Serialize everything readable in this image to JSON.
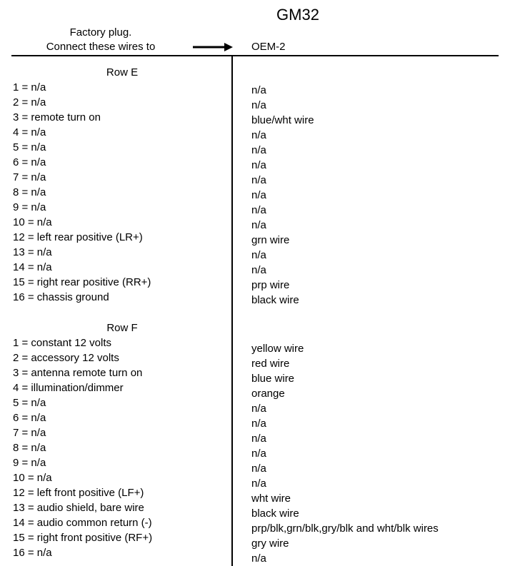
{
  "title": "GM32",
  "header": {
    "left_line1": "Factory plug.",
    "left_line2": "Connect these wires to",
    "right": "OEM-2"
  },
  "sections": [
    {
      "title": "Row E",
      "rows": [
        {
          "pin": "1",
          "desc": "n/a",
          "wire": "n/a"
        },
        {
          "pin": "2",
          "desc": "n/a",
          "wire": "n/a"
        },
        {
          "pin": "3",
          "desc": "remote turn on",
          "wire": "blue/wht wire"
        },
        {
          "pin": "4",
          "desc": "n/a",
          "wire": "n/a"
        },
        {
          "pin": "5",
          "desc": "n/a",
          "wire": "n/a"
        },
        {
          "pin": "6",
          "desc": "n/a",
          "wire": "n/a"
        },
        {
          "pin": "7",
          "desc": "n/a",
          "wire": "n/a"
        },
        {
          "pin": "8",
          "desc": "n/a",
          "wire": "n/a"
        },
        {
          "pin": "9",
          "desc": "n/a",
          "wire": "n/a"
        },
        {
          "pin": "10",
          "desc": "n/a",
          "wire": "n/a"
        },
        {
          "pin": "12",
          "desc": "left rear positive (LR+)",
          "wire": "grn wire"
        },
        {
          "pin": "13",
          "desc": "n/a",
          "wire": "n/a"
        },
        {
          "pin": "14",
          "desc": "n/a",
          "wire": "n/a"
        },
        {
          "pin": "15",
          "desc": "right rear positive (RR+)",
          "wire": "prp wire"
        },
        {
          "pin": "16",
          "desc": "chassis ground",
          "wire": "black wire"
        }
      ]
    },
    {
      "title": "Row F",
      "rows": [
        {
          "pin": "1",
          "desc": "constant 12 volts",
          "wire": "yellow wire"
        },
        {
          "pin": "2",
          "desc": "accessory 12 volts",
          "wire": "red wire"
        },
        {
          "pin": "3",
          "desc": "antenna remote turn on",
          "wire": "blue wire"
        },
        {
          "pin": "4",
          "desc": "illumination/dimmer",
          "wire": "orange"
        },
        {
          "pin": "5",
          "desc": "n/a",
          "wire": "n/a"
        },
        {
          "pin": "6",
          "desc": "n/a",
          "wire": "n/a"
        },
        {
          "pin": "7",
          "desc": "n/a",
          "wire": "n/a"
        },
        {
          "pin": "8",
          "desc": "n/a",
          "wire": "n/a"
        },
        {
          "pin": "9",
          "desc": "n/a",
          "wire": "n/a"
        },
        {
          "pin": "10",
          "desc": "n/a",
          "wire": "n/a"
        },
        {
          "pin": "12",
          "desc": "left front positive (LF+)",
          "wire": "wht wire"
        },
        {
          "pin": "13",
          "desc": "audio shield, bare wire",
          "wire": "black wire"
        },
        {
          "pin": "14",
          "desc": "audio common return (-)",
          "wire": "prp/blk,grn/blk,gry/blk and wht/blk wires"
        },
        {
          "pin": "15",
          "desc": "right front positive (RF+)",
          "wire": "gry wire"
        },
        {
          "pin": "16",
          "desc": "n/a",
          "wire": "n/a"
        }
      ]
    }
  ],
  "style": {
    "text_color": "#000000",
    "bg_color": "#ffffff",
    "border_color": "#000000",
    "title_fontsize": 22,
    "body_fontsize": 15,
    "line_height": 1.4
  }
}
